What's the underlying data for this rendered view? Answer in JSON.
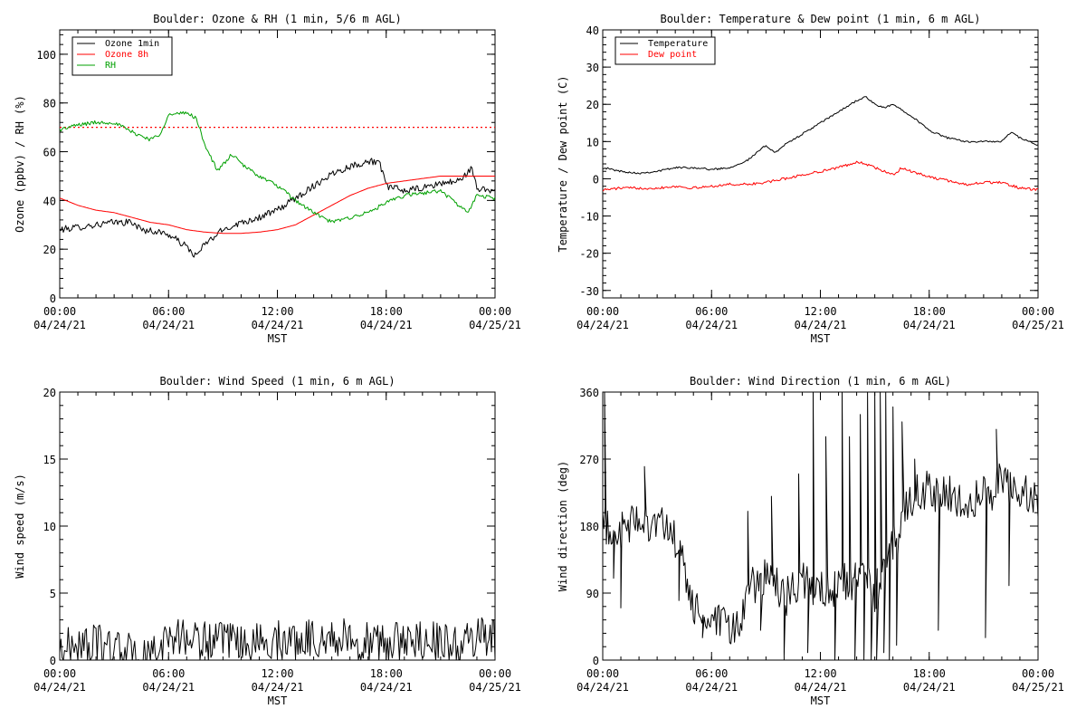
{
  "chart_data": [
    {
      "id": "ozone-rh",
      "type": "line",
      "title": "Boulder: Ozone & RH (1 min, 5/6 m AGL)",
      "xlabel": "MST",
      "ylabel": "Ozone (ppbv) / RH (%)",
      "ylim": [
        0,
        110
      ],
      "y_ticks": [
        0,
        20,
        40,
        60,
        80,
        100
      ],
      "xlim_hours": [
        0,
        24
      ],
      "x_ticks": [
        {
          "h": 0,
          "time": "00:00",
          "date": "04/24/21"
        },
        {
          "h": 6,
          "time": "06:00",
          "date": "04/24/21"
        },
        {
          "h": 12,
          "time": "12:00",
          "date": "04/24/21"
        },
        {
          "h": 18,
          "time": "18:00",
          "date": "04/24/21"
        },
        {
          "h": 24,
          "time": "00:00",
          "date": "04/25/21"
        }
      ],
      "legend_position": "top-left",
      "reference_lines": [
        {
          "y": 70,
          "color": "#ff0000",
          "style": "dotted"
        }
      ],
      "series": [
        {
          "name": "Ozone 1min",
          "color": "#000000",
          "noise": 1.4,
          "spikes": [],
          "points": [
            [
              0,
              28
            ],
            [
              1,
              29
            ],
            [
              2,
              30
            ],
            [
              3,
              31
            ],
            [
              4,
              31
            ],
            [
              4.5,
              28
            ],
            [
              5.5,
              27
            ],
            [
              6,
              26
            ],
            [
              7,
              21
            ],
            [
              7.5,
              17
            ],
            [
              8,
              22
            ],
            [
              9,
              28
            ],
            [
              10,
              31
            ],
            [
              11,
              33
            ],
            [
              12,
              36
            ],
            [
              13,
              41
            ],
            [
              14,
              46
            ],
            [
              15,
              51
            ],
            [
              16,
              54
            ],
            [
              17,
              56
            ],
            [
              17.6,
              56
            ],
            [
              18,
              46
            ],
            [
              19,
              44
            ],
            [
              20,
              45
            ],
            [
              21,
              47
            ],
            [
              22,
              48
            ],
            [
              22.7,
              53
            ],
            [
              23,
              45
            ],
            [
              24,
              44
            ]
          ]
        },
        {
          "name": "Ozone 8h",
          "color": "#ff0000",
          "noise": 0,
          "spikes": [],
          "points": [
            [
              0,
              41
            ],
            [
              1,
              38
            ],
            [
              2,
              36
            ],
            [
              3,
              35
            ],
            [
              4,
              33
            ],
            [
              5,
              31
            ],
            [
              6,
              30
            ],
            [
              7,
              28
            ],
            [
              8,
              27
            ],
            [
              9,
              26.5
            ],
            [
              10,
              26.5
            ],
            [
              11,
              27
            ],
            [
              12,
              28
            ],
            [
              13,
              30
            ],
            [
              14,
              34
            ],
            [
              15,
              38
            ],
            [
              16,
              42
            ],
            [
              17,
              45
            ],
            [
              18,
              47
            ],
            [
              19,
              48
            ],
            [
              20,
              49
            ],
            [
              21,
              50
            ],
            [
              22,
              50
            ],
            [
              23,
              50
            ],
            [
              24,
              50
            ]
          ]
        },
        {
          "name": "RH",
          "color": "#00a000",
          "noise": 0.8,
          "spikes": [],
          "points": [
            [
              0,
              69
            ],
            [
              1,
              71
            ],
            [
              2,
              72
            ],
            [
              3,
              72
            ],
            [
              3.5,
              70
            ],
            [
              4,
              68
            ],
            [
              5,
              65
            ],
            [
              5.5,
              67
            ],
            [
              6,
              75
            ],
            [
              7,
              76
            ],
            [
              7.5,
              74
            ],
            [
              8,
              63
            ],
            [
              8.7,
              52
            ],
            [
              9.5,
              59
            ],
            [
              10,
              55
            ],
            [
              11,
              50
            ],
            [
              12,
              46
            ],
            [
              13,
              40
            ],
            [
              14,
              35
            ],
            [
              15,
              31
            ],
            [
              16,
              33
            ],
            [
              17,
              35
            ],
            [
              18,
              39
            ],
            [
              19,
              42
            ],
            [
              20,
              43
            ],
            [
              21,
              44
            ],
            [
              22,
              38
            ],
            [
              22.5,
              35
            ],
            [
              23,
              42
            ],
            [
              24,
              41
            ]
          ]
        }
      ]
    },
    {
      "id": "temp-dew",
      "type": "line",
      "title": "Boulder: Temperature & Dew point (1 min, 6 m AGL)",
      "xlabel": "MST",
      "ylabel": "Temperature / Dew point (C)",
      "ylim": [
        -32,
        40
      ],
      "y_ticks": [
        -30,
        -20,
        -10,
        0,
        10,
        20,
        30,
        40
      ],
      "xlim_hours": [
        0,
        24
      ],
      "x_ticks": [
        {
          "h": 0,
          "time": "00:00",
          "date": "04/24/21"
        },
        {
          "h": 6,
          "time": "06:00",
          "date": "04/24/21"
        },
        {
          "h": 12,
          "time": "12:00",
          "date": "04/24/21"
        },
        {
          "h": 18,
          "time": "18:00",
          "date": "04/24/21"
        },
        {
          "h": 24,
          "time": "00:00",
          "date": "04/25/21"
        }
      ],
      "legend_position": "top-left",
      "reference_lines": [],
      "series": [
        {
          "name": "Temperature",
          "color": "#000000",
          "noise": 0.25,
          "spikes": [],
          "points": [
            [
              0,
              3
            ],
            [
              1,
              2
            ],
            [
              2,
              1.5
            ],
            [
              3,
              2
            ],
            [
              4,
              3
            ],
            [
              5,
              3
            ],
            [
              6,
              2.5
            ],
            [
              7,
              3
            ],
            [
              8,
              5
            ],
            [
              9,
              9
            ],
            [
              9.5,
              7
            ],
            [
              10,
              9
            ],
            [
              11,
              12
            ],
            [
              12,
              15
            ],
            [
              13,
              18
            ],
            [
              14,
              21
            ],
            [
              14.5,
              22
            ],
            [
              15,
              20
            ],
            [
              15.5,
              19
            ],
            [
              16,
              20
            ],
            [
              17,
              17
            ],
            [
              18,
              13
            ],
            [
              19,
              11
            ],
            [
              20,
              10
            ],
            [
              21,
              10
            ],
            [
              22,
              10
            ],
            [
              22.5,
              12.5
            ],
            [
              23,
              11
            ],
            [
              24,
              9
            ]
          ]
        },
        {
          "name": "Dew point",
          "color": "#ff0000",
          "noise": 0.35,
          "spikes": [],
          "points": [
            [
              0,
              -3
            ],
            [
              1,
              -2.5
            ],
            [
              2,
              -2.5
            ],
            [
              3,
              -2.5
            ],
            [
              4,
              -2
            ],
            [
              5,
              -2.5
            ],
            [
              6,
              -2
            ],
            [
              7,
              -1.5
            ],
            [
              8,
              -1.5
            ],
            [
              9,
              -1
            ],
            [
              10,
              0
            ],
            [
              11,
              1
            ],
            [
              12,
              2
            ],
            [
              13,
              3
            ],
            [
              14,
              4.5
            ],
            [
              14.5,
              4
            ],
            [
              15,
              3
            ],
            [
              16,
              1
            ],
            [
              16.5,
              3
            ],
            [
              17,
              2
            ],
            [
              18,
              0.5
            ],
            [
              19,
              -0.5
            ],
            [
              20,
              -1.5
            ],
            [
              21,
              -1
            ],
            [
              22,
              -1
            ],
            [
              23,
              -2.5
            ],
            [
              24,
              -3
            ]
          ]
        }
      ]
    },
    {
      "id": "wind-speed",
      "type": "line",
      "title": "Boulder: Wind Speed (1 min, 6 m AGL)",
      "xlabel": "MST",
      "ylabel": "Wind speed (m/s)",
      "ylim": [
        0,
        20
      ],
      "y_ticks": [
        0,
        5,
        10,
        15,
        20
      ],
      "xlim_hours": [
        0,
        24
      ],
      "x_ticks": [
        {
          "h": 0,
          "time": "00:00",
          "date": "04/24/21"
        },
        {
          "h": 6,
          "time": "06:00",
          "date": "04/24/21"
        },
        {
          "h": 12,
          "time": "12:00",
          "date": "04/24/21"
        },
        {
          "h": 18,
          "time": "18:00",
          "date": "04/24/21"
        },
        {
          "h": 24,
          "time": "00:00",
          "date": "04/25/21"
        }
      ],
      "legend_position": "none",
      "reference_lines": [],
      "series": [
        {
          "name": "",
          "color": "#000000",
          "noise": 1.5,
          "clamp_min": 0,
          "spikes": [],
          "points": [
            [
              0,
              0.8
            ],
            [
              1,
              1.1
            ],
            [
              2,
              1.2
            ],
            [
              3,
              0.9
            ],
            [
              4,
              0.5
            ],
            [
              5,
              0.2
            ],
            [
              5.5,
              0.5
            ],
            [
              6,
              2
            ],
            [
              7,
              1.6
            ],
            [
              8,
              1.5
            ],
            [
              9,
              1.3
            ],
            [
              10,
              1.2
            ],
            [
              11,
              1.3
            ],
            [
              12,
              1.5
            ],
            [
              13,
              1.5
            ],
            [
              14,
              1.7
            ],
            [
              15,
              1.6
            ],
            [
              16,
              1.6
            ],
            [
              17,
              1.3
            ],
            [
              18,
              1.2
            ],
            [
              19,
              1.4
            ],
            [
              20,
              1.6
            ],
            [
              21,
              1.3
            ],
            [
              22,
              1
            ],
            [
              23,
              1.8
            ],
            [
              24,
              1.6
            ]
          ]
        }
      ]
    },
    {
      "id": "wind-direction",
      "type": "line",
      "title": "Boulder: Wind Direction (1 min, 6 m AGL)",
      "xlabel": "MST",
      "ylabel": "Wind direction (deg)",
      "ylim": [
        0,
        360
      ],
      "y_ticks": [
        0,
        90,
        180,
        270,
        360
      ],
      "xlim_hours": [
        0,
        24
      ],
      "x_ticks": [
        {
          "h": 0,
          "time": "00:00",
          "date": "04/24/21"
        },
        {
          "h": 6,
          "time": "06:00",
          "date": "04/24/21"
        },
        {
          "h": 12,
          "time": "12:00",
          "date": "04/24/21"
        },
        {
          "h": 18,
          "time": "18:00",
          "date": "04/24/21"
        },
        {
          "h": 24,
          "time": "00:00",
          "date": "04/25/21"
        }
      ],
      "legend_position": "none",
      "reference_lines": [],
      "series": [
        {
          "name": "",
          "color": "#000000",
          "noise": 28,
          "clamp_min": 0,
          "clamp_max": 360,
          "spikes": [
            [
              0.1,
              360
            ],
            [
              0.6,
              110
            ],
            [
              1,
              70
            ],
            [
              2.3,
              260
            ],
            [
              4.2,
              80
            ],
            [
              5.5,
              30
            ],
            [
              8,
              200
            ],
            [
              8.7,
              40
            ],
            [
              9.3,
              220
            ],
            [
              10,
              5
            ],
            [
              10.8,
              250
            ],
            [
              11.3,
              10
            ],
            [
              11.6,
              360
            ],
            [
              12.3,
              300
            ],
            [
              12.8,
              0
            ],
            [
              13.2,
              360
            ],
            [
              13.6,
              300
            ],
            [
              13.9,
              0
            ],
            [
              14.2,
              330
            ],
            [
              14.4,
              0
            ],
            [
              14.6,
              360
            ],
            [
              14.8,
              0
            ],
            [
              15.0,
              360
            ],
            [
              15.1,
              0
            ],
            [
              15.3,
              360
            ],
            [
              15.5,
              10
            ],
            [
              15.6,
              360
            ],
            [
              15.8,
              0
            ],
            [
              16.0,
              340
            ],
            [
              16.2,
              20
            ],
            [
              16.5,
              320
            ],
            [
              17.2,
              270
            ],
            [
              18.5,
              40
            ],
            [
              21.1,
              30
            ],
            [
              21.7,
              310
            ],
            [
              22.4,
              100
            ]
          ],
          "points": [
            [
              0,
              180
            ],
            [
              1,
              170
            ],
            [
              2,
              190
            ],
            [
              3,
              185
            ],
            [
              4,
              160
            ],
            [
              4.5,
              120
            ],
            [
              5,
              70
            ],
            [
              6,
              50
            ],
            [
              7,
              40
            ],
            [
              7.5,
              45
            ],
            [
              8,
              90
            ],
            [
              9,
              120
            ],
            [
              10,
              80
            ],
            [
              11,
              110
            ],
            [
              12,
              90
            ],
            [
              13,
              100
            ],
            [
              14,
              110
            ],
            [
              15,
              90
            ],
            [
              16,
              150
            ],
            [
              17,
              220
            ],
            [
              18,
              230
            ],
            [
              19,
              220
            ],
            [
              20,
              215
            ],
            [
              21,
              220
            ],
            [
              22,
              240
            ],
            [
              23,
              230
            ],
            [
              24,
              210
            ]
          ]
        }
      ]
    }
  ]
}
